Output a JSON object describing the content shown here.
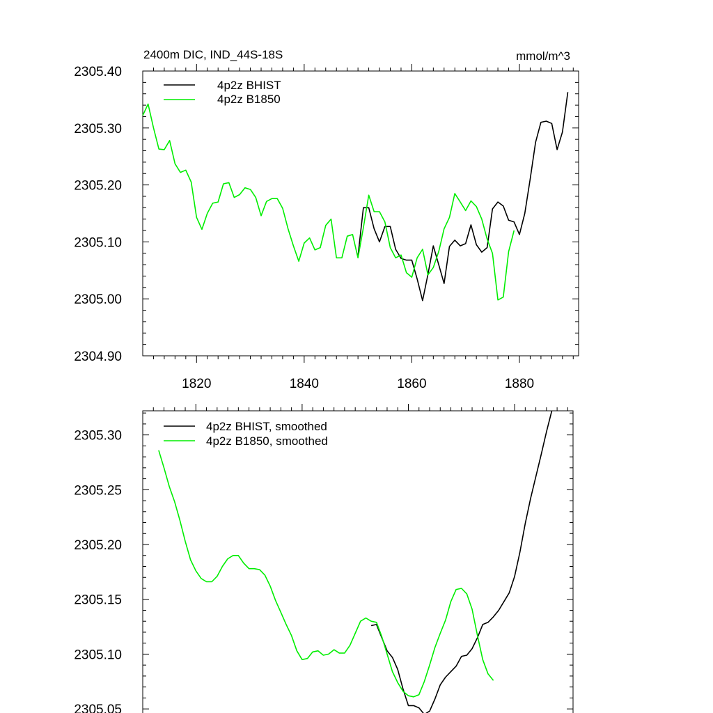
{
  "colors": {
    "bhist": "#000000",
    "b1850": "#00ee00"
  },
  "chart_data": [
    {
      "type": "line",
      "title": "2400m DIC, IND_44S-18S",
      "units": "mmol/m^3",
      "xlabel": "",
      "ylabel": "",
      "xlim": [
        1810,
        1891
      ],
      "ylim": [
        2304.9,
        2305.4
      ],
      "xticks": [
        1820,
        1840,
        1860,
        1880
      ],
      "xticklabels": [
        "1820",
        "1840",
        "1860",
        "1880"
      ],
      "yticks": [
        2304.9,
        2305.0,
        2305.1,
        2305.2,
        2305.3,
        2305.4
      ],
      "yticklabels": [
        "2304.90",
        "2305.00",
        "2305.10",
        "2305.20",
        "2305.30",
        "2305.40"
      ],
      "legend_position": "top-left",
      "series": [
        {
          "name": "4p2z BHIST",
          "color_key": "bhist",
          "x": [
            1850,
            1851,
            1852,
            1853,
            1854,
            1855,
            1856,
            1857,
            1858,
            1859,
            1860,
            1861,
            1862,
            1863,
            1864,
            1865,
            1866,
            1867,
            1868,
            1869,
            1870,
            1871,
            1872,
            1873,
            1874,
            1875,
            1876,
            1877,
            1878,
            1879,
            1880,
            1881,
            1882,
            1883,
            1884,
            1885,
            1886,
            1887,
            1888,
            1889
          ],
          "values": [
            2305.075,
            2305.16,
            2305.16,
            2305.123,
            2305.1,
            2305.127,
            2305.127,
            2305.087,
            2305.071,
            2305.068,
            2305.068,
            2305.035,
            2304.997,
            2305.043,
            2305.093,
            2305.06,
            2305.027,
            2305.092,
            2305.103,
            2305.093,
            2305.097,
            2305.13,
            2305.095,
            2305.082,
            2305.09,
            2305.158,
            2305.17,
            2305.163,
            2305.138,
            2305.135,
            2305.113,
            2305.15,
            2305.21,
            2305.275,
            2305.31,
            2305.312,
            2305.308,
            2305.262,
            2305.293,
            2305.363
          ]
        },
        {
          "name": "4p2z B1850",
          "color_key": "b1850",
          "x": [
            1810,
            1811,
            1812,
            1813,
            1814,
            1815,
            1816,
            1817,
            1818,
            1819,
            1820,
            1821,
            1822,
            1823,
            1824,
            1825,
            1826,
            1827,
            1828,
            1829,
            1830,
            1831,
            1832,
            1833,
            1834,
            1835,
            1836,
            1837,
            1838,
            1839,
            1840,
            1841,
            1842,
            1843,
            1844,
            1845,
            1846,
            1847,
            1848,
            1849,
            1850,
            1851,
            1852,
            1853,
            1854,
            1855,
            1856,
            1857,
            1858,
            1859,
            1860,
            1861,
            1862,
            1863,
            1864,
            1865,
            1866,
            1867,
            1868,
            1869,
            1870,
            1871,
            1872,
            1873,
            1874,
            1875,
            1876,
            1877,
            1878,
            1879
          ],
          "values": [
            2305.322,
            2305.342,
            2305.3,
            2305.263,
            2305.262,
            2305.278,
            2305.237,
            2305.222,
            2305.226,
            2305.205,
            2305.143,
            2305.122,
            2305.15,
            2305.168,
            2305.17,
            2305.202,
            2305.204,
            2305.178,
            2305.183,
            2305.195,
            2305.192,
            2305.178,
            2305.146,
            2305.171,
            2305.176,
            2305.176,
            2305.159,
            2305.123,
            2305.093,
            2305.066,
            2305.098,
            2305.107,
            2305.086,
            2305.09,
            2305.129,
            2305.14,
            2305.072,
            2305.072,
            2305.11,
            2305.113,
            2305.072,
            2305.125,
            2305.182,
            2305.153,
            2305.153,
            2305.135,
            2305.09,
            2305.072,
            2305.077,
            2305.046,
            2305.038,
            2305.072,
            2305.087,
            2305.042,
            2305.055,
            2305.083,
            2305.123,
            2305.143,
            2305.185,
            2305.17,
            2305.155,
            2305.172,
            2305.162,
            2305.14,
            2305.105,
            2305.08,
            2304.998,
            2305.003,
            2305.083,
            2305.12
          ]
        }
      ]
    },
    {
      "type": "line",
      "title": "",
      "xlabel": "",
      "ylabel": "",
      "xlim": [
        1810,
        1891
      ],
      "ylim": [
        2305.045,
        2305.322
      ],
      "xticks": [
        1820,
        1840,
        1860,
        1880
      ],
      "yticks": [
        2305.05,
        2305.1,
        2305.15,
        2305.2,
        2305.25,
        2305.3
      ],
      "yticklabels": [
        "2305.05",
        "2305.10",
        "2305.15",
        "2305.20",
        "2305.25",
        "2305.30"
      ],
      "legend_position": "top-left",
      "series": [
        {
          "name": "4p2z BHIST, smoothed",
          "color_key": "bhist",
          "x": [
            1853,
            1854,
            1855,
            1856,
            1857,
            1858,
            1859,
            1860,
            1861,
            1862,
            1863,
            1864,
            1865,
            1866,
            1867,
            1868,
            1869,
            1870,
            1871,
            1872,
            1873,
            1874,
            1875,
            1876,
            1877,
            1878,
            1879,
            1880,
            1881,
            1882,
            1883,
            1884,
            1885,
            1886,
            1887
          ],
          "values": [
            2305.126,
            2305.127,
            2305.115,
            2305.103,
            2305.097,
            2305.086,
            2305.068,
            2305.053,
            2305.053,
            2305.051,
            2305.045,
            2305.048,
            2305.059,
            2305.072,
            2305.079,
            2305.084,
            2305.089,
            2305.098,
            2305.099,
            2305.105,
            2305.115,
            2305.127,
            2305.129,
            2305.134,
            2305.14,
            2305.148,
            2305.156,
            2305.171,
            2305.193,
            2305.219,
            2305.242,
            2305.262,
            2305.282,
            2305.303,
            2305.322
          ]
        },
        {
          "name": "4p2z B1850, smoothed",
          "color_key": "b1850",
          "x": [
            1813,
            1814,
            1815,
            1816,
            1817,
            1818,
            1819,
            1820,
            1821,
            1822,
            1823,
            1824,
            1825,
            1826,
            1827,
            1828,
            1829,
            1830,
            1831,
            1832,
            1833,
            1834,
            1835,
            1836,
            1837,
            1838,
            1839,
            1840,
            1841,
            1842,
            1843,
            1844,
            1845,
            1846,
            1847,
            1848,
            1849,
            1850,
            1851,
            1852,
            1853,
            1854,
            1855,
            1856,
            1857,
            1858,
            1859,
            1860,
            1861,
            1862,
            1863,
            1864,
            1865,
            1866,
            1867,
            1868,
            1869,
            1870,
            1871,
            1872,
            1873,
            1874,
            1875,
            1876
          ],
          "values": [
            2305.286,
            2305.27,
            2305.253,
            2305.239,
            2305.222,
            2305.203,
            2305.186,
            2305.176,
            2305.169,
            2305.166,
            2305.166,
            2305.171,
            2305.18,
            2305.187,
            2305.19,
            2305.19,
            2305.183,
            2305.178,
            2305.178,
            2305.177,
            2305.172,
            2305.162,
            2305.149,
            2305.138,
            2305.127,
            2305.117,
            2305.103,
            2305.095,
            2305.096,
            2305.102,
            2305.103,
            2305.099,
            2305.1,
            2305.104,
            2305.101,
            2305.101,
            2305.108,
            2305.119,
            2305.13,
            2305.133,
            2305.13,
            2305.129,
            2305.116,
            2305.1,
            2305.084,
            2305.074,
            2305.066,
            2305.062,
            2305.061,
            2305.063,
            2305.075,
            2305.09,
            2305.106,
            2305.119,
            2305.131,
            2305.148,
            2305.159,
            2305.16,
            2305.155,
            2305.141,
            2305.117,
            2305.095,
            2305.082,
            2305.076
          ]
        }
      ]
    }
  ]
}
